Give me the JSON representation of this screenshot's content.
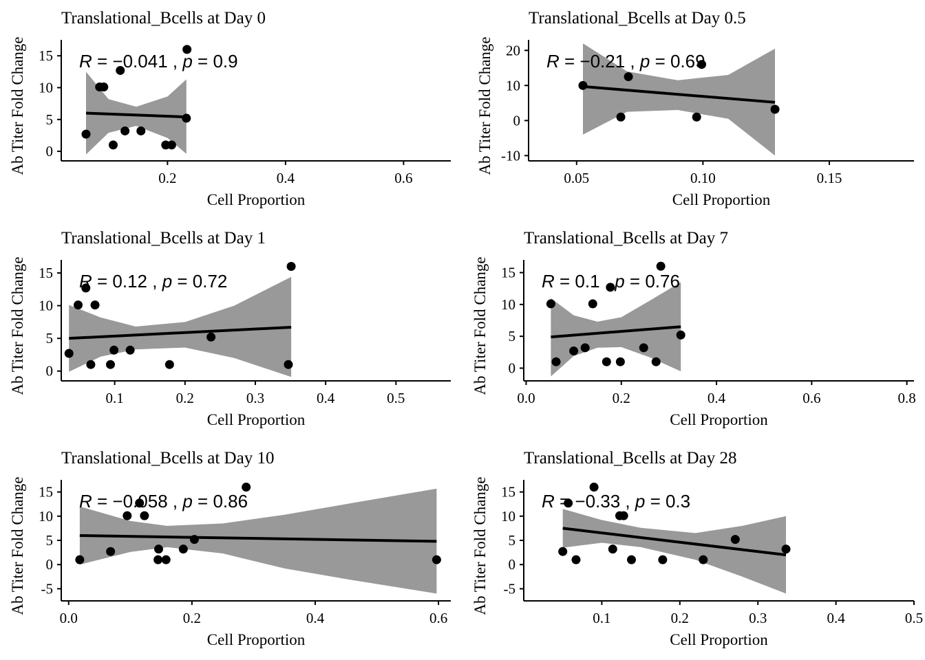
{
  "chart_data": [
    {
      "type": "scatter",
      "title": "Translational_Bcells at Day 0",
      "xlabel": "Cell Proportion",
      "ylabel": "Ab Titer Fold Change",
      "xlim": [
        0.02,
        0.68
      ],
      "ylim": [
        -1.5,
        17.5
      ],
      "xticks": [
        0.2,
        0.4,
        0.6
      ],
      "xtick_labels": [
        "0.2",
        "0.4",
        "0.6"
      ],
      "yticks": [
        0,
        5,
        10,
        15
      ],
      "ytick_labels": [
        "0",
        "5",
        "10",
        "15"
      ],
      "points": [
        {
          "x": 0.062,
          "y": 2.7
        },
        {
          "x": 0.085,
          "y": 10.1
        },
        {
          "x": 0.092,
          "y": 10.1
        },
        {
          "x": 0.108,
          "y": 1.0
        },
        {
          "x": 0.12,
          "y": 12.7
        },
        {
          "x": 0.128,
          "y": 3.2
        },
        {
          "x": 0.155,
          "y": 3.2
        },
        {
          "x": 0.197,
          "y": 1.0
        },
        {
          "x": 0.207,
          "y": 1.0
        },
        {
          "x": 0.233,
          "y": 16.0
        },
        {
          "x": 0.232,
          "y": 5.2
        }
      ],
      "fit": {
        "x": [
          0.062,
          0.232
        ],
        "y": [
          6.0,
          5.4
        ]
      },
      "ci_band": {
        "x": [
          0.062,
          0.1,
          0.147,
          0.2,
          0.232
        ],
        "lower": [
          -0.5,
          2.9,
          4.0,
          2.1,
          -0.4
        ],
        "upper": [
          12.5,
          8.2,
          7.0,
          8.6,
          11.3
        ]
      },
      "annotation": {
        "r_label": "R",
        "r_value": "= −0.041",
        "sep": ",",
        "p_label": "p",
        "p_value": "= 0.9"
      }
    },
    {
      "type": "scatter",
      "title": "Translational_Bcells at Day 0.5",
      "xlabel": "Cell Proportion",
      "ylabel": "Ab Titer Fold Change",
      "xlim": [
        0.031,
        0.1835
      ],
      "ylim": [
        -11.5,
        23.0
      ],
      "xticks": [
        0.05,
        0.1,
        0.15
      ],
      "xtick_labels": [
        "0.05",
        "0.10",
        "0.15"
      ],
      "yticks": [
        -10,
        0,
        10,
        20
      ],
      "ytick_labels": [
        "-10",
        "0",
        "10",
        "20"
      ],
      "points": [
        {
          "x": 0.0525,
          "y": 10.0
        },
        {
          "x": 0.0675,
          "y": 1.0
        },
        {
          "x": 0.0705,
          "y": 12.5
        },
        {
          "x": 0.0975,
          "y": 1.0
        },
        {
          "x": 0.0995,
          "y": 16.0
        },
        {
          "x": 0.1285,
          "y": 3.2
        }
      ],
      "fit": {
        "x": [
          0.0525,
          0.1285
        ],
        "y": [
          9.7,
          5.2
        ]
      },
      "ci_band": {
        "x": [
          0.0525,
          0.07,
          0.09,
          0.11,
          0.1285
        ],
        "lower": [
          -4.0,
          2.5,
          3.0,
          0.5,
          -10.0
        ],
        "upper": [
          22.0,
          14.0,
          11.5,
          13.0,
          20.5
        ]
      },
      "annotation": {
        "r_label": "R",
        "r_value": "= −0.21",
        "sep": ",",
        "p_label": "p",
        "p_value": "= 0.69"
      }
    },
    {
      "type": "scatter",
      "title": "Translational_Bcells at Day 1",
      "xlabel": "Cell Proportion",
      "ylabel": "Ab Titer Fold Change",
      "xlim": [
        0.024,
        0.578
      ],
      "ylim": [
        -1.5,
        17.0
      ],
      "xticks": [
        0.1,
        0.2,
        0.3,
        0.4,
        0.5
      ],
      "xtick_labels": [
        "0.1",
        "0.2",
        "0.3",
        "0.4",
        "0.5"
      ],
      "yticks": [
        0,
        5,
        10,
        15
      ],
      "ytick_labels": [
        "0",
        "5",
        "10",
        "15"
      ],
      "points": [
        {
          "x": 0.035,
          "y": 2.7
        },
        {
          "x": 0.048,
          "y": 10.1
        },
        {
          "x": 0.059,
          "y": 12.7
        },
        {
          "x": 0.066,
          "y": 1.0
        },
        {
          "x": 0.072,
          "y": 10.1
        },
        {
          "x": 0.094,
          "y": 1.0
        },
        {
          "x": 0.099,
          "y": 3.2
        },
        {
          "x": 0.122,
          "y": 3.2
        },
        {
          "x": 0.178,
          "y": 1.0
        },
        {
          "x": 0.237,
          "y": 5.2
        },
        {
          "x": 0.347,
          "y": 1.0
        },
        {
          "x": 0.351,
          "y": 16.0
        }
      ],
      "fit": {
        "x": [
          0.035,
          0.351
        ],
        "y": [
          5.0,
          6.7
        ]
      },
      "ci_band": {
        "x": [
          0.035,
          0.08,
          0.13,
          0.2,
          0.27,
          0.351
        ],
        "lower": [
          -0.1,
          2.2,
          3.3,
          3.6,
          2.0,
          -0.9
        ],
        "upper": [
          10.1,
          8.2,
          6.8,
          7.5,
          10.0,
          14.4
        ]
      },
      "annotation": {
        "r_label": "R",
        "r_value": "= 0.12",
        "sep": ",",
        "p_label": "p",
        "p_value": "= 0.72"
      }
    },
    {
      "type": "scatter",
      "title": "Translational_Bcells at Day 7",
      "xlabel": "Cell Proportion",
      "ylabel": "Ab Titer Fold Change",
      "xlim": [
        -0.005,
        0.815
      ],
      "ylim": [
        -2.0,
        17.0
      ],
      "xticks": [
        0.0,
        0.2,
        0.4,
        0.6,
        0.8
      ],
      "xtick_labels": [
        "0.0",
        "0.2",
        "0.4",
        "0.6",
        "0.8"
      ],
      "yticks": [
        0,
        5,
        10,
        15
      ],
      "ytick_labels": [
        "0",
        "5",
        "10",
        "15"
      ],
      "points": [
        {
          "x": 0.052,
          "y": 10.1
        },
        {
          "x": 0.063,
          "y": 1.0
        },
        {
          "x": 0.1,
          "y": 2.7
        },
        {
          "x": 0.124,
          "y": 3.2
        },
        {
          "x": 0.14,
          "y": 10.1
        },
        {
          "x": 0.169,
          "y": 1.0
        },
        {
          "x": 0.177,
          "y": 12.7
        },
        {
          "x": 0.198,
          "y": 1.0
        },
        {
          "x": 0.247,
          "y": 3.2
        },
        {
          "x": 0.273,
          "y": 1.0
        },
        {
          "x": 0.283,
          "y": 16.0
        },
        {
          "x": 0.325,
          "y": 5.2
        }
      ],
      "fit": {
        "x": [
          0.052,
          0.325
        ],
        "y": [
          4.9,
          6.5
        ]
      },
      "ci_band": {
        "x": [
          0.052,
          0.1,
          0.15,
          0.2,
          0.26,
          0.325
        ],
        "lower": [
          -1.3,
          1.9,
          3.2,
          3.3,
          1.7,
          -0.5
        ],
        "upper": [
          11.0,
          8.3,
          7.3,
          8.0,
          10.6,
          13.5
        ]
      },
      "annotation": {
        "r_label": "R",
        "r_value": "= 0.1",
        "sep": ",",
        "p_label": "p",
        "p_value": "= 0.76"
      }
    },
    {
      "type": "scatter",
      "title": "Translational_Bcells at Day 10",
      "xlabel": "Cell Proportion",
      "ylabel": "Ab Titer Fold Change",
      "xlim": [
        -0.012,
        0.62
      ],
      "ylim": [
        -7.5,
        17.5
      ],
      "xticks": [
        0.0,
        0.2,
        0.4,
        0.6
      ],
      "xtick_labels": [
        "0.0",
        "0.2",
        "0.4",
        "0.6"
      ],
      "yticks": [
        -5,
        0,
        5,
        10,
        15
      ],
      "ytick_labels": [
        "-5",
        "0",
        "5",
        "10",
        "15"
      ],
      "points": [
        {
          "x": 0.018,
          "y": 1.0
        },
        {
          "x": 0.068,
          "y": 2.7
        },
        {
          "x": 0.095,
          "y": 10.1
        },
        {
          "x": 0.115,
          "y": 12.7
        },
        {
          "x": 0.123,
          "y": 10.1
        },
        {
          "x": 0.145,
          "y": 1.0
        },
        {
          "x": 0.146,
          "y": 3.2
        },
        {
          "x": 0.158,
          "y": 1.0
        },
        {
          "x": 0.186,
          "y": 3.2
        },
        {
          "x": 0.204,
          "y": 5.2
        },
        {
          "x": 0.288,
          "y": 16.0
        },
        {
          "x": 0.597,
          "y": 1.0
        }
      ],
      "fit": {
        "x": [
          0.018,
          0.597
        ],
        "y": [
          6.0,
          4.8
        ]
      },
      "ci_band": {
        "x": [
          0.018,
          0.1,
          0.16,
          0.25,
          0.35,
          0.45,
          0.597
        ],
        "lower": [
          0.0,
          2.6,
          3.6,
          2.3,
          -0.8,
          -3.0,
          -6.0
        ],
        "upper": [
          12.0,
          9.0,
          8.0,
          8.5,
          10.3,
          12.5,
          15.7
        ]
      },
      "annotation": {
        "r_label": "R",
        "r_value": "= −0.058",
        "sep": ",",
        "p_label": "p",
        "p_value": "= 0.86"
      }
    },
    {
      "type": "scatter",
      "title": "Translational_Bcells at Day 28",
      "xlabel": "Cell Proportion",
      "ylabel": "Ab Titer Fold Change",
      "xlim": [
        0.0,
        0.5
      ],
      "ylim": [
        -7.5,
        17.5
      ],
      "xticks": [
        0.1,
        0.2,
        0.3,
        0.4,
        0.5
      ],
      "xtick_labels": [
        "0.1",
        "0.2",
        "0.3",
        "0.4",
        "0.5"
      ],
      "yticks": [
        -5,
        0,
        5,
        10,
        15
      ],
      "ytick_labels": [
        "-5",
        "0",
        "5",
        "10",
        "15"
      ],
      "points": [
        {
          "x": 0.05,
          "y": 2.7
        },
        {
          "x": 0.057,
          "y": 12.7
        },
        {
          "x": 0.067,
          "y": 1.0
        },
        {
          "x": 0.09,
          "y": 16.0
        },
        {
          "x": 0.114,
          "y": 3.2
        },
        {
          "x": 0.123,
          "y": 10.1
        },
        {
          "x": 0.128,
          "y": 10.1
        },
        {
          "x": 0.138,
          "y": 1.0
        },
        {
          "x": 0.178,
          "y": 1.0
        },
        {
          "x": 0.23,
          "y": 1.0
        },
        {
          "x": 0.271,
          "y": 5.2
        },
        {
          "x": 0.336,
          "y": 3.2
        }
      ],
      "fit": {
        "x": [
          0.05,
          0.336
        ],
        "y": [
          7.5,
          2.0
        ]
      },
      "ci_band": {
        "x": [
          0.05,
          0.1,
          0.15,
          0.22,
          0.28,
          0.336
        ],
        "lower": [
          3.5,
          4.5,
          3.6,
          1.0,
          -2.5,
          -6.0
        ],
        "upper": [
          11.5,
          9.2,
          7.6,
          6.5,
          8.0,
          10.0
        ]
      },
      "annotation": {
        "r_label": "R",
        "r_value": "= −0.33",
        "sep": ",",
        "p_label": "p",
        "p_value": "= 0.3"
      }
    }
  ]
}
